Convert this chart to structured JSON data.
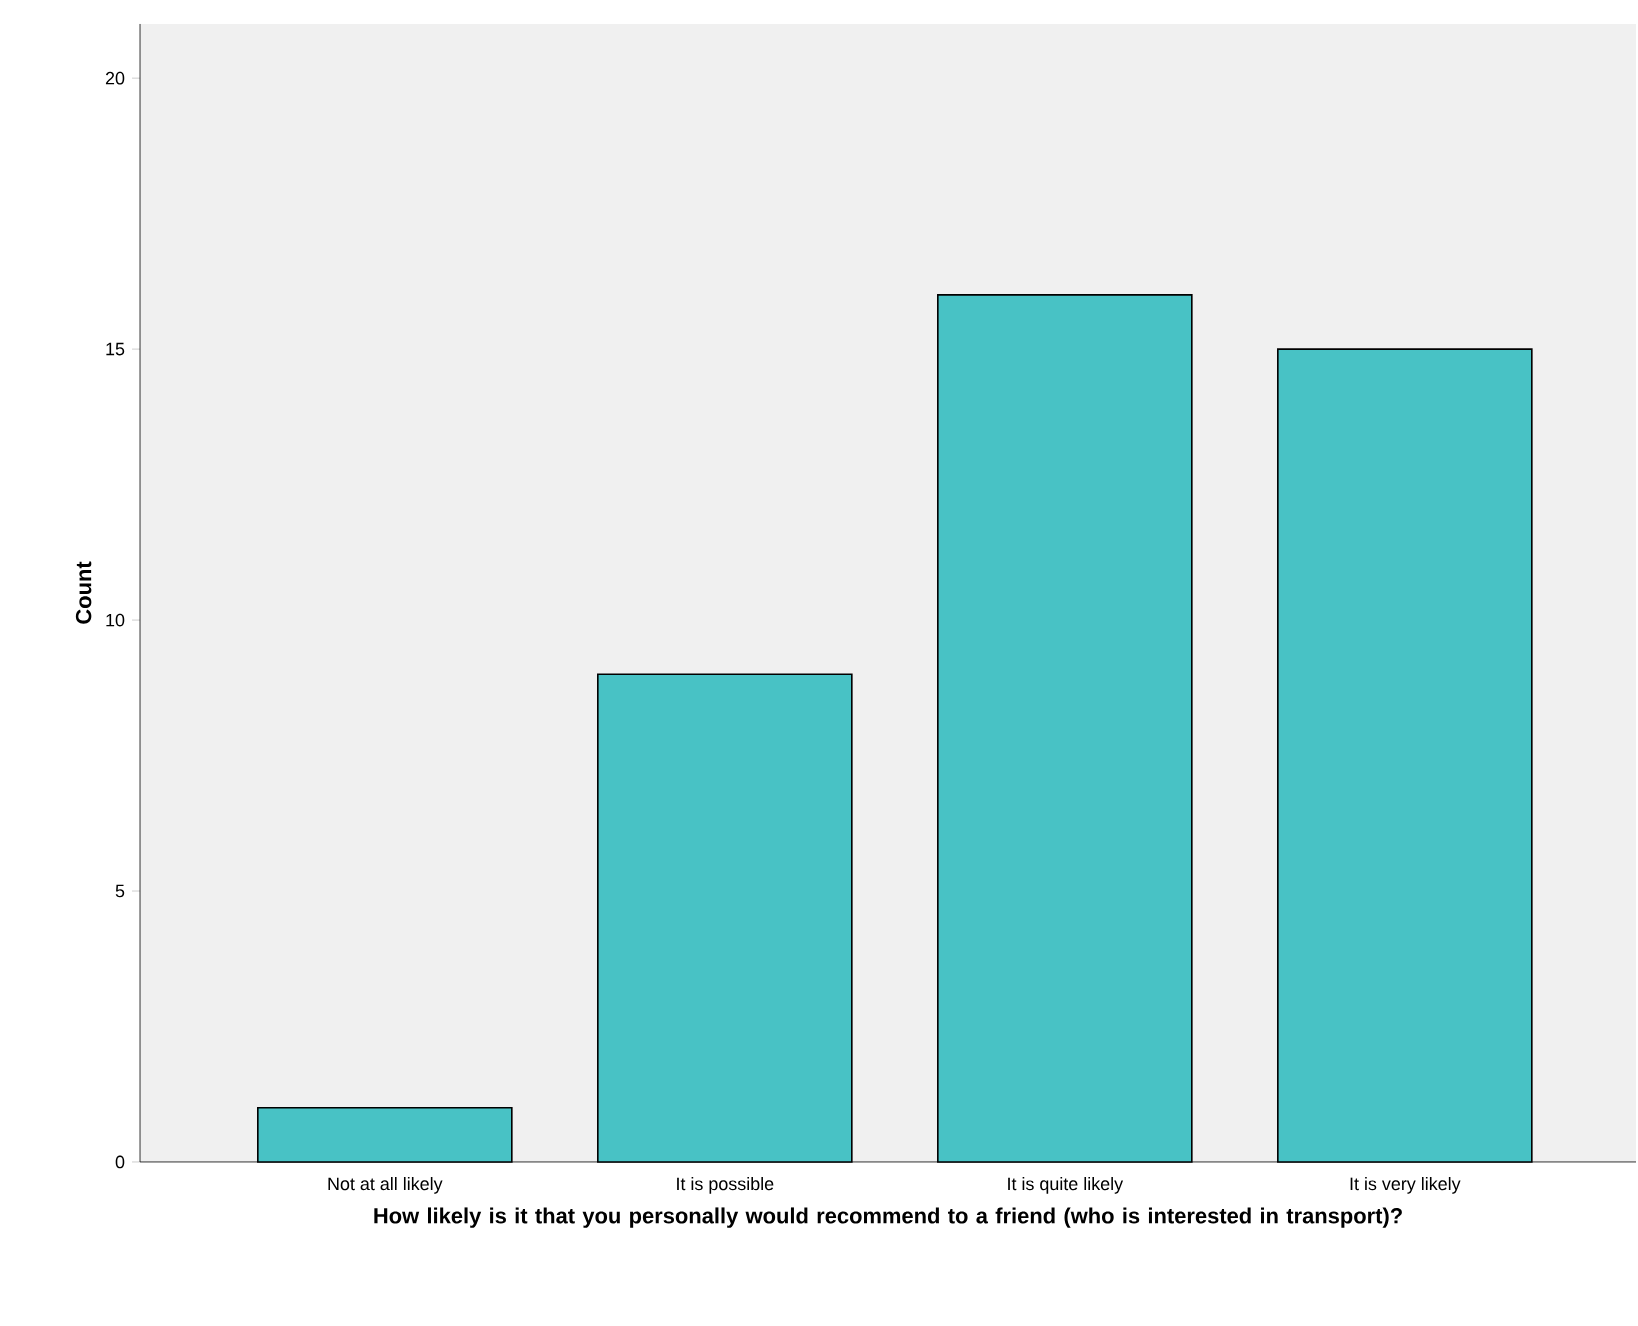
{
  "chart_data": {
    "type": "bar",
    "xlabel": "How likely is it that you personally would recommend to a friend (who is interested in transport)?",
    "ylabel": "Count",
    "categories": [
      "Not at all likely",
      "It is possible",
      "It is quite likely",
      "It is very likely"
    ],
    "values": [
      1,
      9,
      16,
      15
    ],
    "color": "#48c2c5",
    "ylim": [
      0,
      21
    ],
    "yticks": [
      0,
      5,
      10,
      15,
      20
    ]
  }
}
